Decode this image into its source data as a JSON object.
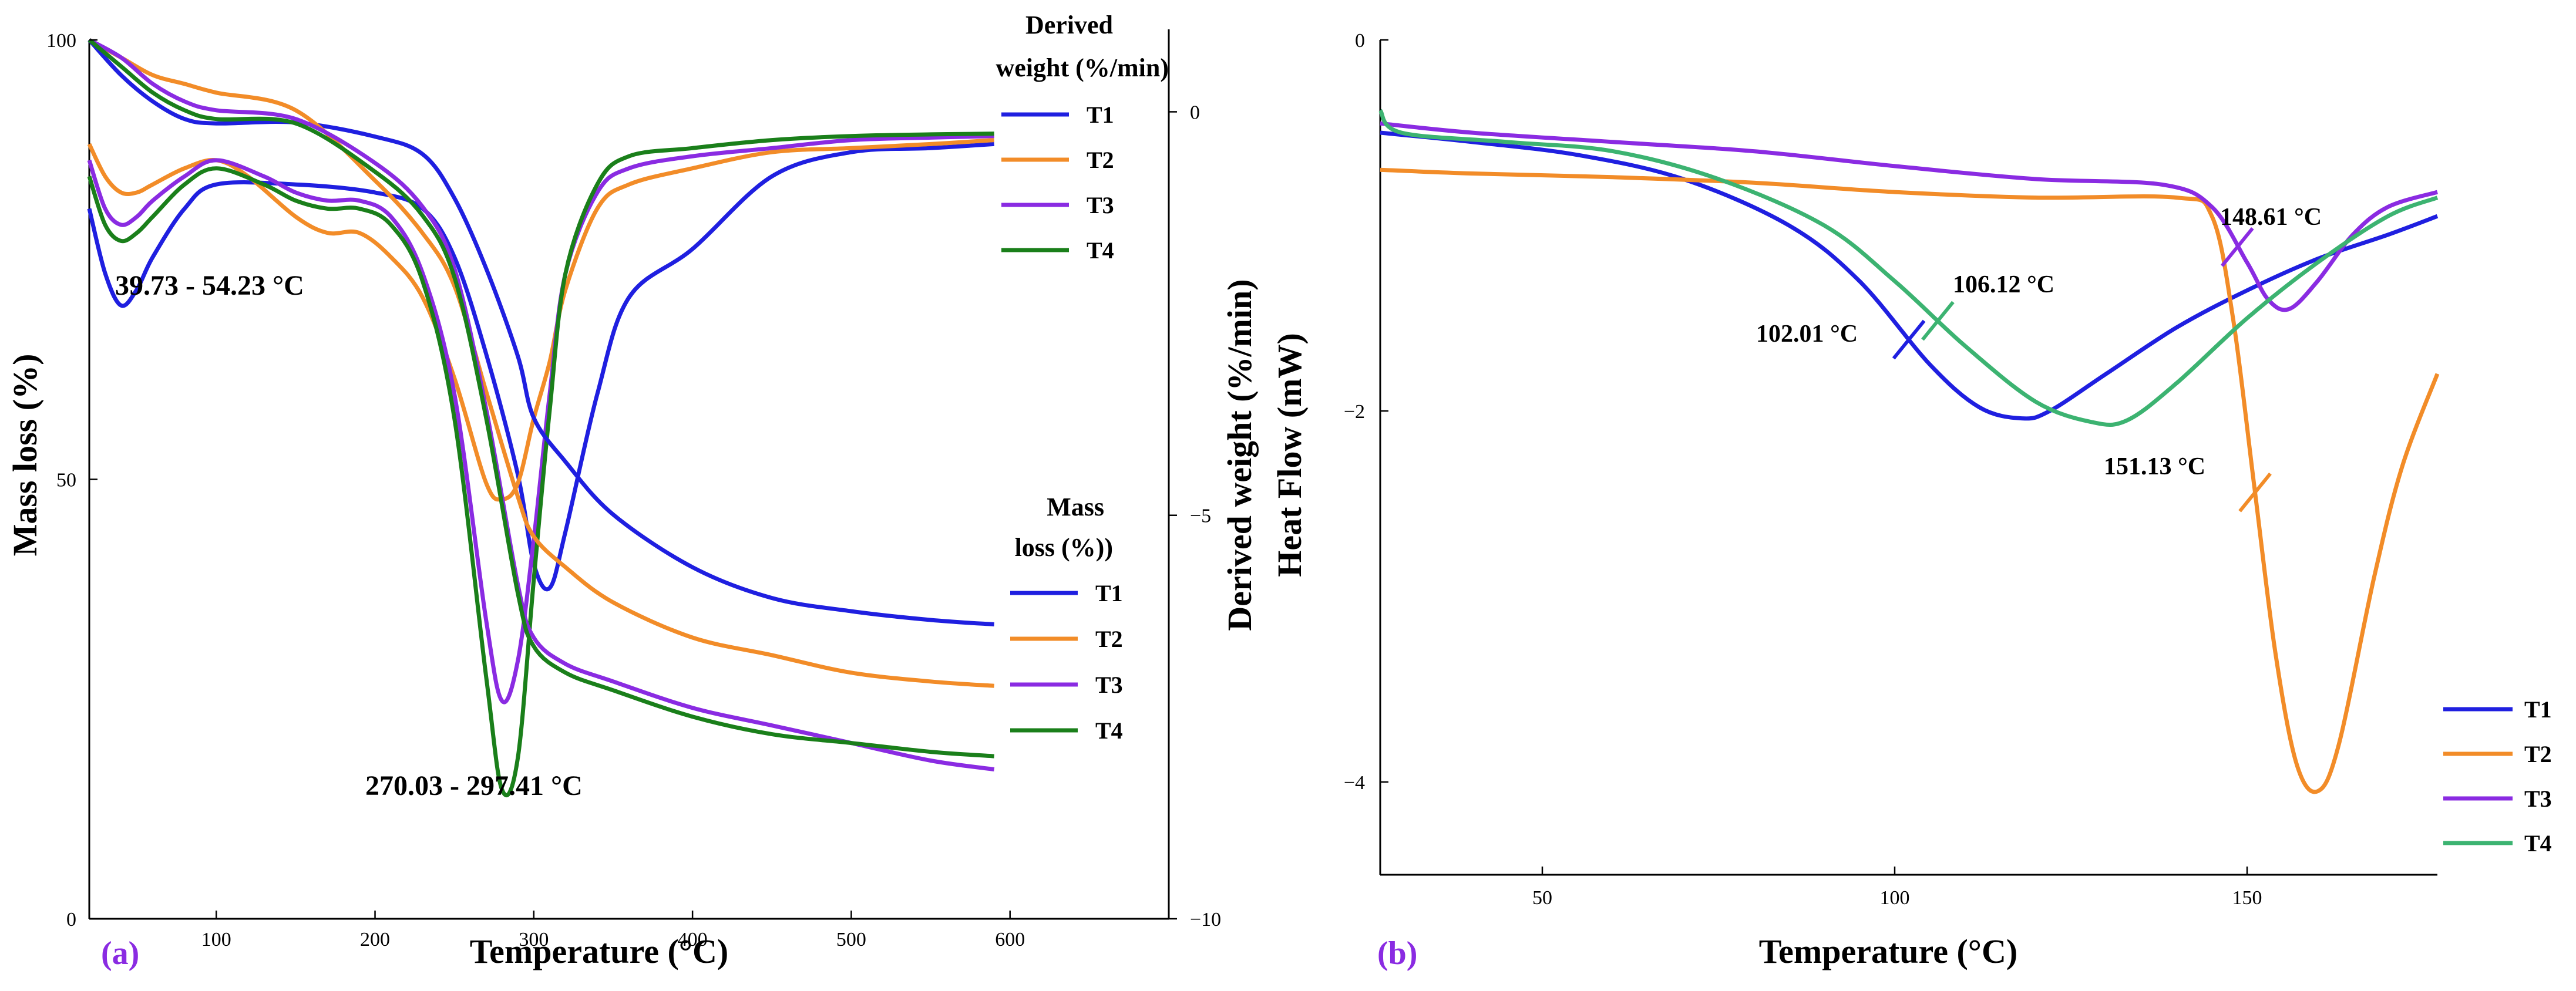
{
  "colors": {
    "T1": "#1f1fe0",
    "T2": "#f28c28",
    "T3": "#8a2be2",
    "T4": "#1a7f1a",
    "T4_b": "#3cb371",
    "label": "#8a2be2"
  },
  "chart_data": [
    {
      "panel": "(a)",
      "type": "line",
      "xlabel": "Temperature (°C)",
      "ylabel": "Mass loss (%)",
      "y2label": "Derived weight (%/min)",
      "xlim": [
        20,
        700
      ],
      "ylim": [
        0,
        100
      ],
      "y2lim": [
        -10,
        1.0
      ],
      "x_ticks": [
        100,
        200,
        300,
        400,
        500,
        600
      ],
      "y_ticks": [
        0,
        50,
        100
      ],
      "y2_ticks": [
        0,
        -5,
        -10
      ],
      "legend_derived_title_1": "Derived",
      "legend_derived_title_2": "weight (%/min)",
      "legend_mass_title_1": "Mass",
      "legend_mass_title_2": "loss (%))",
      "annotations": [
        "39.73 - 54.23 °C",
        "270.03 - 297.41  °C"
      ],
      "mass_series": [
        {
          "name": "T1",
          "x": [
            20,
            40,
            60,
            80,
            100,
            150,
            200,
            230,
            250,
            270,
            290,
            300,
            320,
            350,
            400,
            450,
            500,
            550,
            590
          ],
          "y": [
            100,
            96,
            93,
            91,
            90.5,
            90.6,
            89,
            87,
            82,
            74,
            64,
            57,
            52,
            46,
            40,
            36.5,
            35,
            34,
            33.5
          ]
        },
        {
          "name": "T2",
          "x": [
            20,
            40,
            60,
            80,
            100,
            150,
            200,
            230,
            250,
            270,
            290,
            300,
            320,
            350,
            400,
            450,
            500,
            550,
            590
          ],
          "y": [
            100,
            98,
            96,
            95,
            94,
            92,
            84,
            78,
            72,
            60,
            48,
            43.5,
            40,
            36,
            32,
            30,
            28,
            27,
            26.5
          ]
        },
        {
          "name": "T3",
          "x": [
            20,
            40,
            60,
            80,
            100,
            150,
            200,
            230,
            250,
            270,
            290,
            300,
            320,
            350,
            400,
            450,
            500,
            550,
            590
          ],
          "y": [
            100,
            98,
            95,
            93,
            92,
            91,
            86,
            81,
            74,
            58,
            38,
            32,
            29,
            27,
            24,
            22,
            20,
            18,
            17
          ]
        },
        {
          "name": "T4",
          "x": [
            20,
            40,
            60,
            80,
            100,
            150,
            200,
            230,
            250,
            270,
            290,
            300,
            320,
            350,
            400,
            450,
            500,
            550,
            590
          ],
          "y": [
            100,
            97,
            94,
            92,
            91,
            90.5,
            85,
            80,
            73,
            57,
            37,
            31,
            28,
            26,
            23,
            21,
            20,
            19,
            18.5
          ]
        }
      ],
      "deriv_series": [
        {
          "name": "T1",
          "x": [
            20,
            30,
            40,
            50,
            60,
            80,
            100,
            150,
            200,
            230,
            250,
            270,
            290,
            300,
            310,
            320,
            340,
            360,
            400,
            450,
            500,
            550,
            590
          ],
          "y": [
            -1.2,
            -2.0,
            -2.4,
            -2.2,
            -1.8,
            -1.2,
            -0.9,
            -0.9,
            -1.0,
            -1.2,
            -1.8,
            -3.0,
            -4.5,
            -5.6,
            -5.9,
            -5.2,
            -3.5,
            -2.3,
            -1.7,
            -0.8,
            -0.5,
            -0.45,
            -0.4
          ]
        },
        {
          "name": "T2",
          "x": [
            20,
            30,
            40,
            50,
            60,
            80,
            100,
            120,
            150,
            170,
            190,
            210,
            230,
            250,
            270,
            280,
            290,
            300,
            310,
            320,
            340,
            360,
            400,
            450,
            500,
            550,
            590
          ],
          "y": [
            -0.4,
            -0.8,
            -1.0,
            -1.0,
            -0.9,
            -0.7,
            -0.6,
            -0.8,
            -1.3,
            -1.5,
            -1.5,
            -1.8,
            -2.3,
            -3.3,
            -4.6,
            -4.8,
            -4.6,
            -3.8,
            -3.1,
            -2.2,
            -1.2,
            -0.9,
            -0.7,
            -0.5,
            -0.45,
            -0.4,
            -0.35
          ]
        },
        {
          "name": "T3",
          "x": [
            20,
            30,
            40,
            50,
            60,
            80,
            100,
            130,
            150,
            170,
            190,
            210,
            230,
            250,
            270,
            280,
            290,
            300,
            310,
            320,
            340,
            360,
            400,
            450,
            500,
            550,
            590
          ],
          "y": [
            -0.6,
            -1.2,
            -1.4,
            -1.3,
            -1.1,
            -0.8,
            -0.6,
            -0.8,
            -1.0,
            -1.1,
            -1.1,
            -1.3,
            -2.0,
            -3.5,
            -6.3,
            -7.3,
            -6.8,
            -5.3,
            -3.5,
            -2.0,
            -1.0,
            -0.7,
            -0.55,
            -0.45,
            -0.35,
            -0.32,
            -0.3
          ]
        },
        {
          "name": "T4",
          "x": [
            20,
            30,
            40,
            50,
            60,
            80,
            100,
            130,
            150,
            170,
            190,
            210,
            230,
            250,
            270,
            280,
            290,
            300,
            310,
            320,
            340,
            360,
            400,
            450,
            500,
            550,
            590
          ],
          "y": [
            -0.8,
            -1.4,
            -1.6,
            -1.5,
            -1.3,
            -0.9,
            -0.7,
            -0.9,
            -1.1,
            -1.2,
            -1.2,
            -1.4,
            -2.1,
            -3.8,
            -7.0,
            -8.4,
            -8.0,
            -5.8,
            -3.7,
            -2.0,
            -0.9,
            -0.55,
            -0.45,
            -0.35,
            -0.3,
            -0.28,
            -0.27
          ]
        }
      ]
    },
    {
      "panel": "(b)",
      "type": "line",
      "xlabel": "Temperature (°C)",
      "ylabel": "Heat Flow (mW)",
      "xlim": [
        27,
        177
      ],
      "ylim": [
        -4.5,
        0
      ],
      "x_ticks": [
        50,
        100,
        150
      ],
      "y_ticks": [
        0,
        -2,
        -4
      ],
      "legend": [
        "T1",
        "T2",
        "T3",
        "T4"
      ],
      "annotations": [
        {
          "text": "102.01 °C",
          "series": "T1",
          "x": 102.01
        },
        {
          "text": "106.12 °C",
          "series": "T4",
          "x": 106.12
        },
        {
          "text": "148.61 °C",
          "series": "T3",
          "x": 148.61
        },
        {
          "text": "151.13 °C",
          "series": "T2",
          "x": 151.13
        }
      ],
      "series": [
        {
          "name": "T1",
          "x": [
            27,
            40,
            55,
            70,
            85,
            95,
            105,
            112,
            118,
            122,
            130,
            140,
            150,
            160,
            170,
            177
          ],
          "y": [
            -0.5,
            -0.55,
            -0.62,
            -0.75,
            -1.0,
            -1.3,
            -1.75,
            -1.98,
            -2.04,
            -2.0,
            -1.8,
            -1.55,
            -1.35,
            -1.18,
            -1.05,
            -0.95
          ]
        },
        {
          "name": "T2",
          "x": [
            27,
            40,
            60,
            80,
            100,
            120,
            140,
            145,
            148,
            151,
            154,
            157,
            160,
            163,
            168,
            172,
            177
          ],
          "y": [
            -0.7,
            -0.72,
            -0.74,
            -0.77,
            -0.82,
            -0.85,
            -0.85,
            -0.95,
            -1.5,
            -2.4,
            -3.3,
            -3.9,
            -4.05,
            -3.8,
            -2.9,
            -2.3,
            -1.8
          ]
        },
        {
          "name": "T3",
          "x": [
            27,
            40,
            60,
            80,
            100,
            120,
            138,
            145,
            150,
            153,
            156,
            160,
            165,
            170,
            177
          ],
          "y": [
            -0.45,
            -0.5,
            -0.55,
            -0.6,
            -0.68,
            -0.75,
            -0.78,
            -0.9,
            -1.2,
            -1.4,
            -1.45,
            -1.3,
            -1.05,
            -0.9,
            -0.82
          ]
        },
        {
          "name": "T4",
          "x": [
            27,
            30,
            45,
            60,
            75,
            90,
            100,
            110,
            120,
            128,
            133,
            140,
            150,
            160,
            170,
            177
          ],
          "y": [
            -0.38,
            -0.5,
            -0.55,
            -0.6,
            -0.75,
            -1.0,
            -1.3,
            -1.65,
            -1.95,
            -2.06,
            -2.05,
            -1.85,
            -1.5,
            -1.2,
            -0.95,
            -0.85
          ]
        }
      ]
    }
  ]
}
